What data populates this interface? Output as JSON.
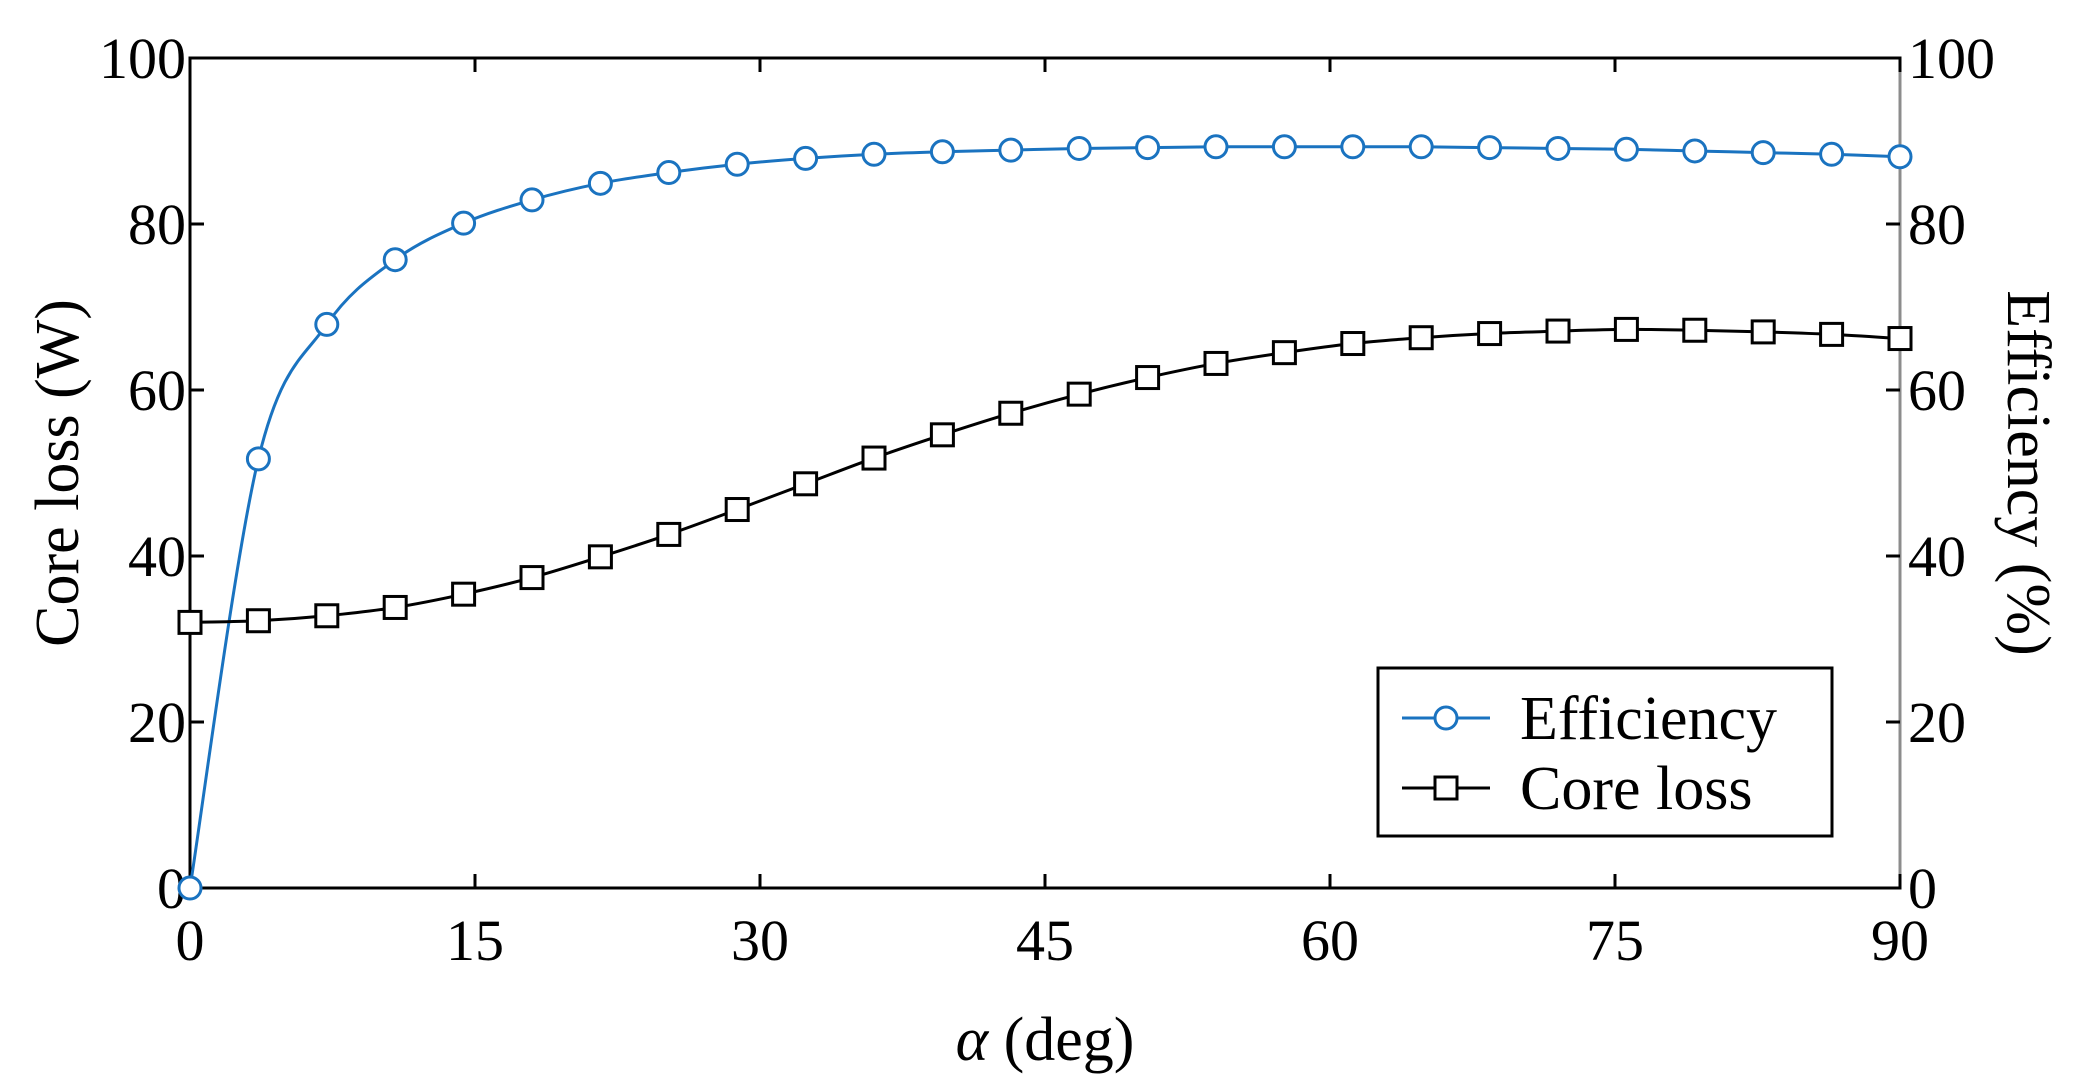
{
  "chart_data": {
    "type": "line",
    "title": "",
    "xlabel_symbol": "α",
    "xlabel_unit": " (deg)",
    "ylabel_left": "Core loss (W)",
    "ylabel_right": "Efficiency (%)",
    "xlim": [
      0,
      90
    ],
    "ylim_left": [
      0,
      100
    ],
    "ylim_right": [
      0,
      100
    ],
    "xticks": [
      0,
      15,
      30,
      45,
      60,
      75,
      90
    ],
    "yticks_left": [
      0,
      20,
      40,
      60,
      80,
      100
    ],
    "yticks_right": [
      0,
      20,
      40,
      60,
      80,
      100
    ],
    "grid": false,
    "legend_position": "bottom-right",
    "x": [
      0,
      3.6,
      7.2,
      10.8,
      14.4,
      18,
      21.6,
      25.2,
      28.8,
      32.4,
      36,
      39.6,
      43.2,
      46.8,
      50.4,
      54,
      57.6,
      61.2,
      64.8,
      68.4,
      72,
      75.6,
      79.2,
      82.8,
      86.4,
      90
    ],
    "series": [
      {
        "name": "Efficiency",
        "axis": "right",
        "marker": "circle",
        "color": "#1a73c0",
        "values": [
          0,
          51.7,
          67.9,
          75.7,
          80.1,
          82.9,
          84.9,
          86.2,
          87.2,
          87.9,
          88.4,
          88.7,
          88.9,
          89.1,
          89.2,
          89.3,
          89.3,
          89.3,
          89.3,
          89.2,
          89.1,
          89.0,
          88.8,
          88.6,
          88.4,
          88.1
        ]
      },
      {
        "name": "Core loss",
        "axis": "left",
        "marker": "square",
        "color": "#000000",
        "values": [
          32.0,
          32.2,
          32.8,
          33.8,
          35.4,
          37.4,
          39.9,
          42.6,
          45.6,
          48.7,
          51.8,
          54.6,
          57.2,
          59.5,
          61.5,
          63.2,
          64.5,
          65.6,
          66.3,
          66.8,
          67.1,
          67.3,
          67.2,
          67.0,
          66.7,
          66.2
        ]
      }
    ]
  }
}
